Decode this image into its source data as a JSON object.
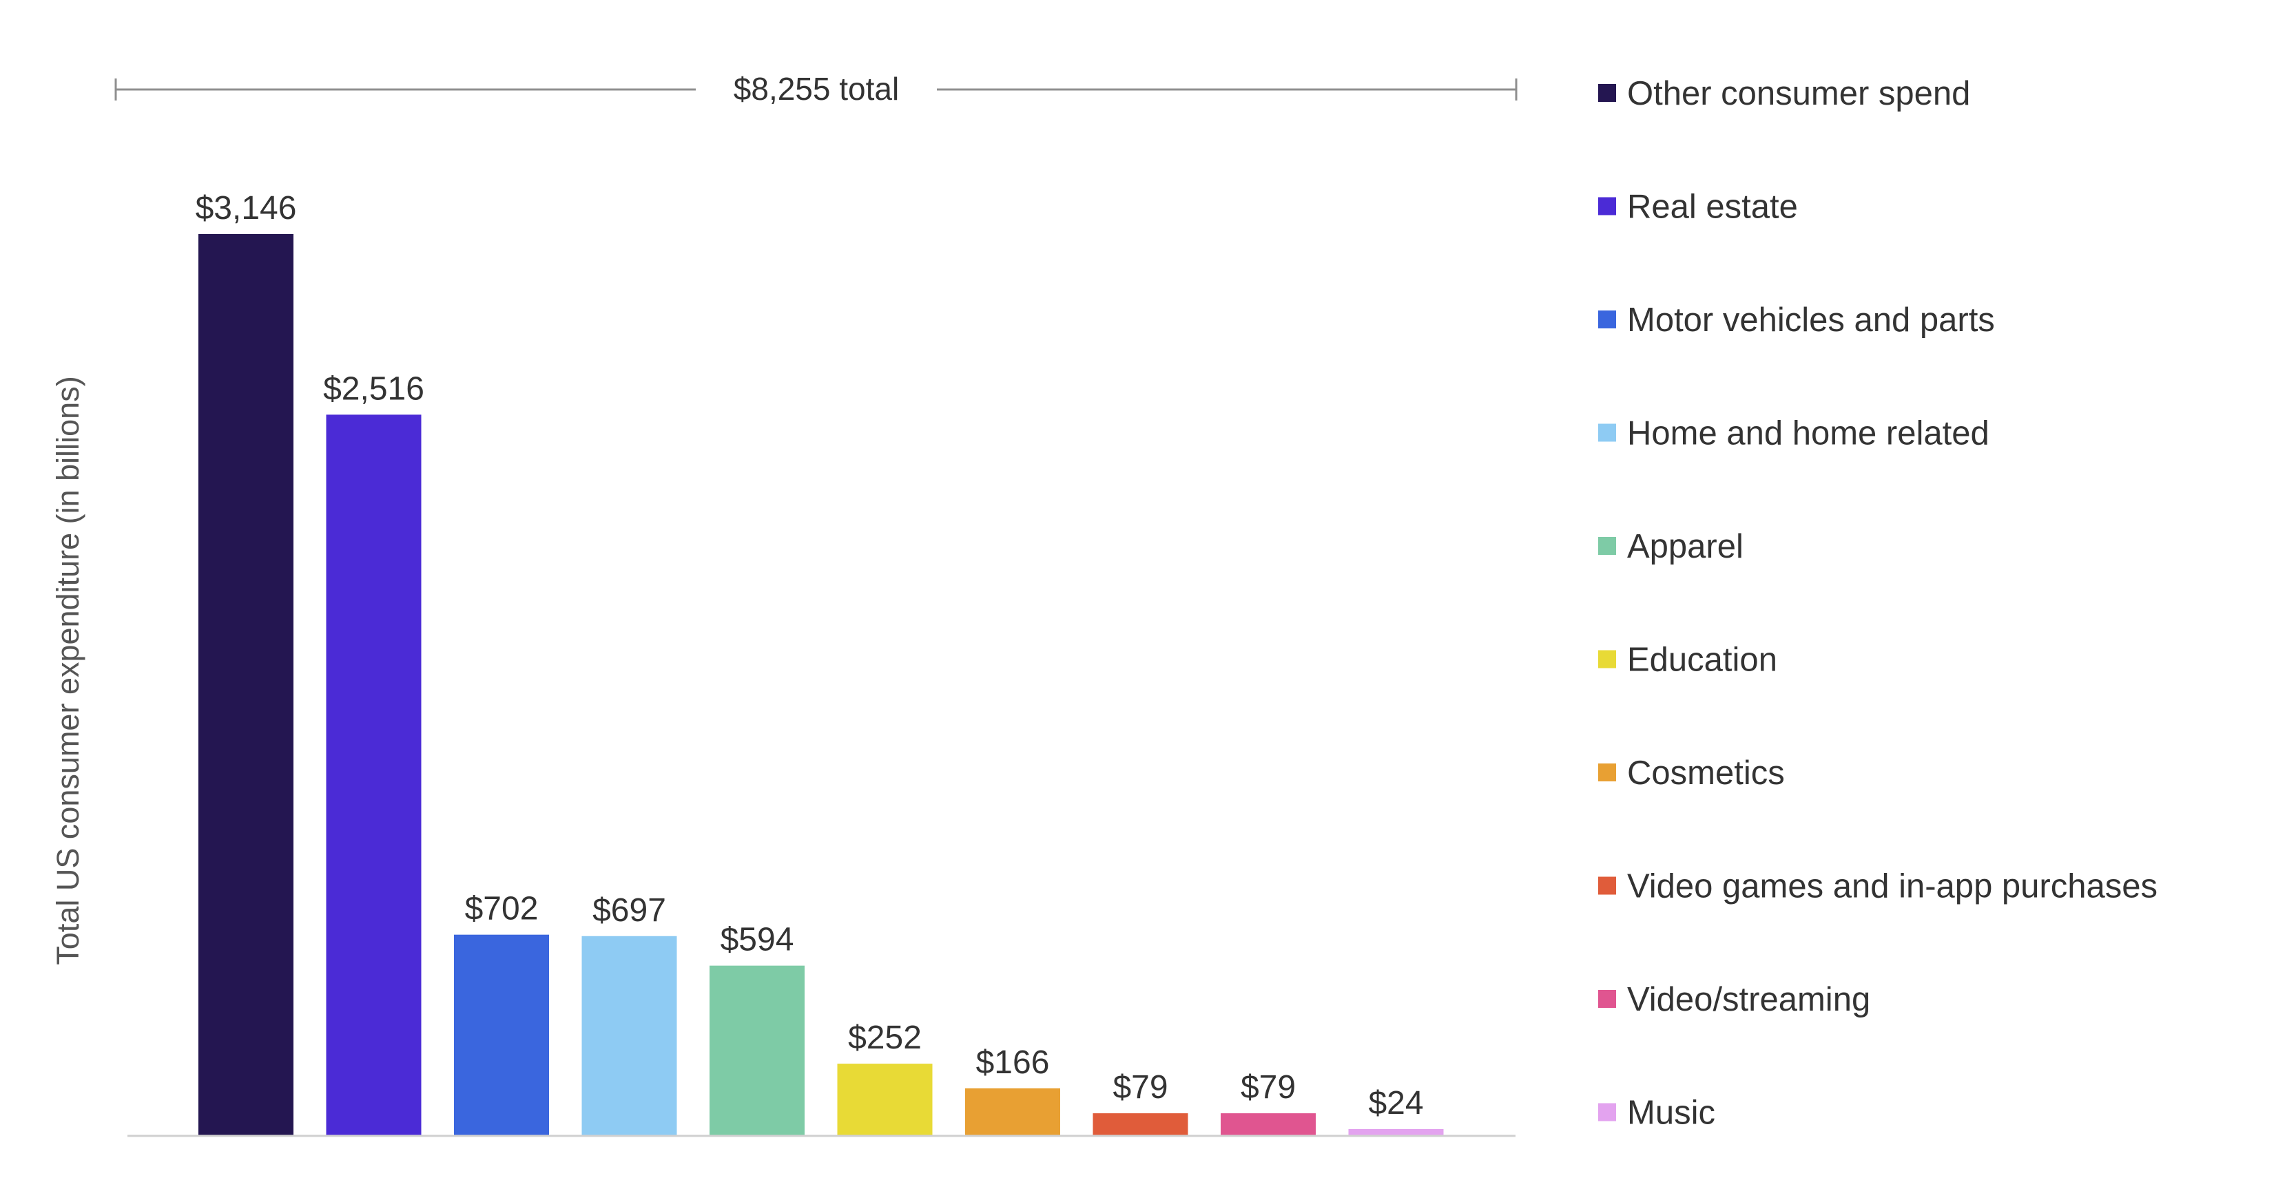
{
  "chart_data": {
    "type": "bar",
    "total_label": "$8,255 total",
    "ylabel": "Total US consumer expenditure (in billions)",
    "ylim": [
      0,
      3146
    ],
    "grid": false,
    "legend_position": "right",
    "categories": [
      "Other consumer spend",
      "Real estate",
      "Motor vehicles and parts",
      "Home and home related",
      "Apparel",
      "Education",
      "Cosmetics",
      "Video games and in-app purchases",
      "Video/streaming",
      "Music"
    ],
    "values": [
      3146,
      2516,
      702,
      697,
      594,
      252,
      166,
      79,
      79,
      24
    ],
    "value_labels": [
      "$3,146",
      "$2,516",
      "$702",
      "$697",
      "$594",
      "$252",
      "$166",
      "$79",
      "$79",
      "$24"
    ],
    "colors": [
      "#241651",
      "#4b2bd6",
      "#3a66de",
      "#8ecbf3",
      "#7ecba6",
      "#e8da36",
      "#e8a033",
      "#e05c3a",
      "#e05590",
      "#e3a3ef"
    ]
  }
}
